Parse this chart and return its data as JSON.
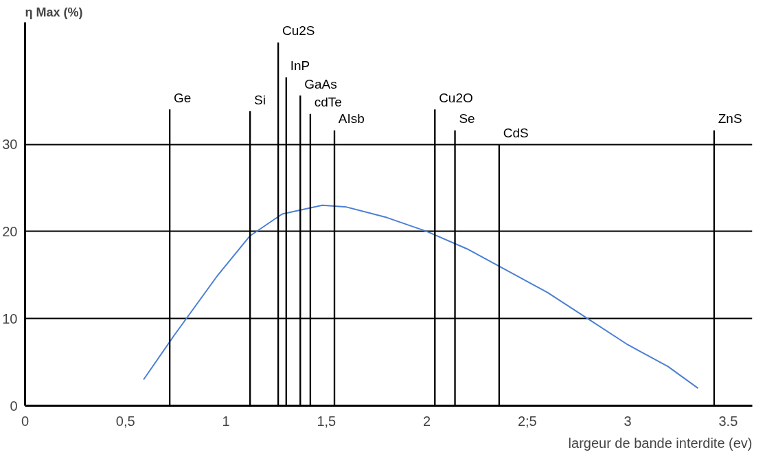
{
  "chart_data": {
    "type": "line",
    "xlabel": "largeur de bande interdite (ev)",
    "ylabel": "η Max (%)",
    "xlim": [
      0,
      3.62
    ],
    "ylim": [
      0,
      44
    ],
    "xticks": [
      0,
      {
        "value": 0.5,
        "label": "0,5"
      },
      1,
      {
        "value": 1.5,
        "label": "1,5"
      },
      2,
      {
        "value": 2.5,
        "label": "2;5"
      },
      3,
      {
        "value": 3.5,
        "label": "3.5"
      }
    ],
    "yticks": [
      0,
      10,
      20,
      30
    ],
    "grid": "y",
    "series": [
      {
        "color": "#4a7fd4",
        "x": [
          0.59,
          0.74,
          0.96,
          1.12,
          1.28,
          1.48,
          1.6,
          1.8,
          2.0,
          2.2,
          2.4,
          2.6,
          2.8,
          3.0,
          3.2,
          3.35
        ],
        "values": [
          3,
          8,
          15,
          19.5,
          22,
          23,
          22.8,
          21.6,
          20,
          18,
          15.5,
          13,
          10,
          7,
          4.5,
          2
        ]
      },
      {
        "type": "bar",
        "color": "#000000",
        "x": [
          0.72,
          1.12,
          1.26,
          1.3,
          1.37,
          1.42,
          1.54,
          2.04,
          2.14,
          2.36,
          3.43
        ],
        "values": [
          34,
          33.8,
          41.7,
          37.7,
          35.6,
          33.5,
          31.6,
          34,
          31.6,
          30,
          31.6
        ]
      }
    ],
    "annotations": [
      {
        "text": "Ge",
        "x": 0.72,
        "y": 34
      },
      {
        "text": "Si",
        "x": 1.12,
        "y": 33.8
      },
      {
        "text": "Cu2S",
        "x": 1.26,
        "y": 41.7
      },
      {
        "text": "InP",
        "x": 1.3,
        "y": 37.7
      },
      {
        "text": "GaAs",
        "x": 1.37,
        "y": 35.6
      },
      {
        "text": "cdTe",
        "x": 1.42,
        "y": 33.5
      },
      {
        "text": "AIsb",
        "x": 1.54,
        "y": 31.6
      },
      {
        "text": "Cu2O",
        "x": 2.04,
        "y": 34
      },
      {
        "text": "Se",
        "x": 2.14,
        "y": 31.6
      },
      {
        "text": "CdS",
        "x": 2.36,
        "y": 30
      },
      {
        "text": "ZnS",
        "x": 3.43,
        "y": 31.6
      }
    ]
  }
}
